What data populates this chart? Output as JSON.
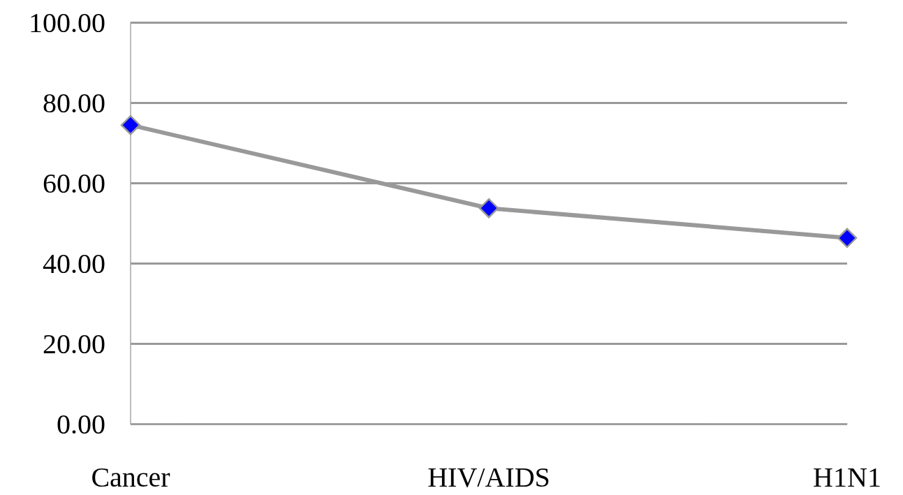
{
  "chart_data": {
    "type": "line",
    "categories": [
      "Cancer",
      "HIV/AIDS",
      "H1N1"
    ],
    "series": [
      {
        "color": "#999999",
        "colors": [
          "#0000ff",
          "#0000ff",
          "#0000ff"
        ],
        "values": [
          74.4,
          53.7,
          46.3
        ]
      }
    ],
    "ylim": [
      0,
      100
    ],
    "yticks": [
      {
        "value": 0,
        "label": "0.00"
      },
      {
        "value": 20,
        "label": "20.00"
      },
      {
        "value": 40,
        "label": "40.00"
      },
      {
        "value": 60,
        "label": "60.00"
      },
      {
        "value": 80,
        "label": "80.00"
      },
      {
        "value": 100,
        "label": "100.00"
      }
    ],
    "grid": "y",
    "marker": "diamond",
    "line_style": "solid"
  }
}
